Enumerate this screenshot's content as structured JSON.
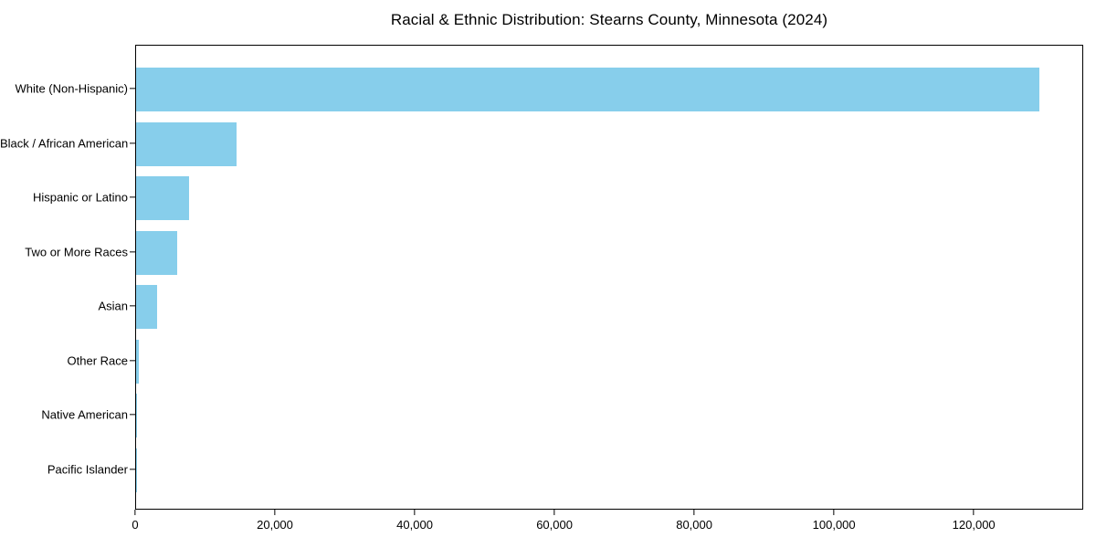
{
  "chart_data": {
    "type": "bar",
    "orientation": "horizontal",
    "title": "Racial & Ethnic Distribution: Stearns County, Minnesota (2024)",
    "categories": [
      "White (Non-Hispanic)",
      "Black / African American",
      "Hispanic or Latino",
      "Two or More Races",
      "Asian",
      "Other Race",
      "Native American",
      "Pacific Islander"
    ],
    "values": [
      129200,
      14400,
      7600,
      5900,
      3000,
      450,
      150,
      40
    ],
    "xlabel": "",
    "ylabel": "",
    "xlim": [
      0,
      135660
    ],
    "xticks": [
      {
        "value": 0,
        "label": "0"
      },
      {
        "value": 20000,
        "label": "20,000"
      },
      {
        "value": 40000,
        "label": "40,000"
      },
      {
        "value": 60000,
        "label": "60,000"
      },
      {
        "value": 80000,
        "label": "80,000"
      },
      {
        "value": 100000,
        "label": "100,000"
      },
      {
        "value": 120000,
        "label": "120,000"
      }
    ],
    "grid": false,
    "legend": "none",
    "colors": {
      "bar": "#87CEEB",
      "axis": "#000000",
      "text": "#000000",
      "background": "#FFFFFF"
    }
  }
}
